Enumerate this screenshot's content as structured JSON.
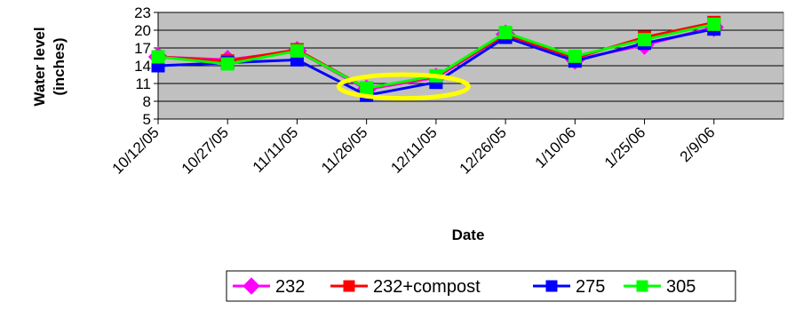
{
  "chart_data": {
    "type": "line",
    "xlabel": "Date",
    "ylabel": "Water level (inches)",
    "ylabel_lines": [
      "Water level",
      "(inches)"
    ],
    "x_tick_labels": [
      "10/12/05",
      "10/27/05",
      "11/11/05",
      "11/26/05",
      "12/11/05",
      "12/26/05",
      "1/10/06",
      "1/25/06",
      "2/9/06"
    ],
    "x_ticks": [
      "2005-10-12",
      "2005-10-27",
      "2005-11-11",
      "2005-11-26",
      "2005-12-11",
      "2005-12-26",
      "2006-01-10",
      "2006-01-25",
      "2006-02-09"
    ],
    "x_range": [
      "2005-10-12",
      "2006-02-24"
    ],
    "y_ticks": [
      5,
      8,
      11,
      14,
      17,
      20,
      23
    ],
    "ylim": [
      5,
      23
    ],
    "grid": true,
    "legend_position": "bottom",
    "annotation": "yellow ellipse highlighting the November–December minimum",
    "highlight_range": {
      "x": [
        "2005-11-20",
        "2005-12-18"
      ],
      "y": [
        8.5,
        12.5
      ]
    },
    "series": [
      {
        "name": "232",
        "color": "#ff00ff",
        "marker": "diamond",
        "x": [
          "2005-10-12",
          "2005-10-27",
          "2005-11-11",
          "2005-11-26",
          "2005-12-11",
          "2005-12-26",
          "2006-01-10",
          "2006-01-25",
          "2006-02-09"
        ],
        "y": [
          15.5,
          15,
          16.5,
          10,
          12,
          19.3,
          15,
          17.5,
          20.5
        ]
      },
      {
        "name": "232+compost",
        "color": "#ff0000",
        "marker": "square",
        "x": [
          "2005-10-12",
          "2005-10-27",
          "2005-11-11",
          "2005-11-26",
          "2005-12-11",
          "2005-12-26",
          "2006-01-10",
          "2006-01-25",
          "2006-02-09"
        ],
        "y": [
          15.5,
          14.8,
          16.7,
          10.2,
          12.2,
          19.3,
          15.3,
          18.8,
          21.3
        ]
      },
      {
        "name": "275",
        "color": "#0000ff",
        "marker": "square",
        "x": [
          "2005-10-12",
          "2005-10-27",
          "2005-11-11",
          "2005-11-26",
          "2005-12-11",
          "2005-12-26",
          "2006-01-10",
          "2006-01-25",
          "2006-02-09"
        ],
        "y": [
          14,
          14.5,
          15,
          9,
          11.2,
          18.8,
          14.8,
          17.8,
          20.2
        ]
      },
      {
        "name": "305",
        "color": "#00ff00",
        "marker": "square",
        "x": [
          "2005-10-12",
          "2005-10-27",
          "2005-11-11",
          "2005-11-26",
          "2005-12-11",
          "2005-12-26",
          "2006-01-10",
          "2006-01-25",
          "2006-02-09"
        ],
        "y": [
          15.5,
          14.3,
          16.5,
          10.2,
          12.3,
          19.6,
          15.6,
          18.4,
          21
        ]
      }
    ]
  },
  "colors": {
    "plot_background": "#c0c0c0",
    "gridline": "#000000",
    "highlight": "#ffff00"
  }
}
